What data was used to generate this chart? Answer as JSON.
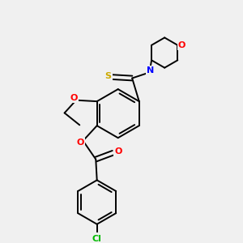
{
  "bg_color": "#f0f0f0",
  "bond_color": "#000000",
  "atom_colors": {
    "S": "#ccaa00",
    "N": "#0000ff",
    "O": "#ff0000",
    "Cl": "#00bb00"
  },
  "lw": 1.4,
  "dpi": 100,
  "figsize": [
    3.0,
    3.0
  ]
}
